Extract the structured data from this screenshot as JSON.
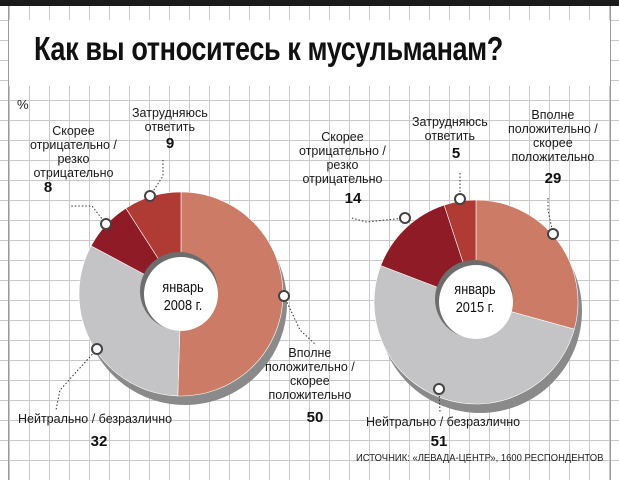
{
  "page": {
    "title": "Как вы относитесь к мусульманам?",
    "unit": "%",
    "source": "ИСТОЧНИК: «ЛЕВАДА-ЦЕНТР», 1600 РЕСПОНДЕНТОВ"
  },
  "chart_data": [
    {
      "type": "pie",
      "center_label": [
        "январь",
        "2008 г."
      ],
      "slices": [
        {
          "label": "Вполне положительно / скорее положительно",
          "value": 50,
          "color": "#cc7b66"
        },
        {
          "label": "Нейтрально / безразлично",
          "value": 32,
          "color": "#c4c4c6"
        },
        {
          "label": "Скорее отрицательно / резко отрицательно",
          "value": 8,
          "color": "#8e1b26"
        },
        {
          "label": "Затрудняюсь ответить",
          "value": 9,
          "color": "#b03a34"
        }
      ],
      "label_text": {
        "positive": [
          "Вполне",
          "положительно /",
          "скорее",
          "положительно"
        ],
        "neutral": [
          "Нейтрально / безразлично"
        ],
        "negative": [
          "Скорее",
          "отрицательно /",
          "резко",
          "отрицательно"
        ],
        "unsure": [
          "Затрудняюсь",
          "ответить"
        ]
      }
    },
    {
      "type": "pie",
      "center_label": [
        "январь",
        "2015 г."
      ],
      "slices": [
        {
          "label": "Вполне положительно / скорее положительно",
          "value": 29,
          "color": "#cc7b66"
        },
        {
          "label": "Нейтрально / безразлично",
          "value": 51,
          "color": "#c4c4c6"
        },
        {
          "label": "Скорее отрицательно / резко отрицательно",
          "value": 14,
          "color": "#8e1b26"
        },
        {
          "label": "Затрудняюсь ответить",
          "value": 5,
          "color": "#b03a34"
        }
      ],
      "label_text": {
        "positive": [
          "Вполне",
          "положительно /",
          "скорее",
          "положительно"
        ],
        "neutral": [
          "Нейтрально / безразлично"
        ],
        "negative": [
          "Скорее",
          "отрицательно /",
          "резко",
          "отрицательно"
        ],
        "unsure": [
          "Затрудняюсь",
          "ответить"
        ]
      }
    }
  ]
}
